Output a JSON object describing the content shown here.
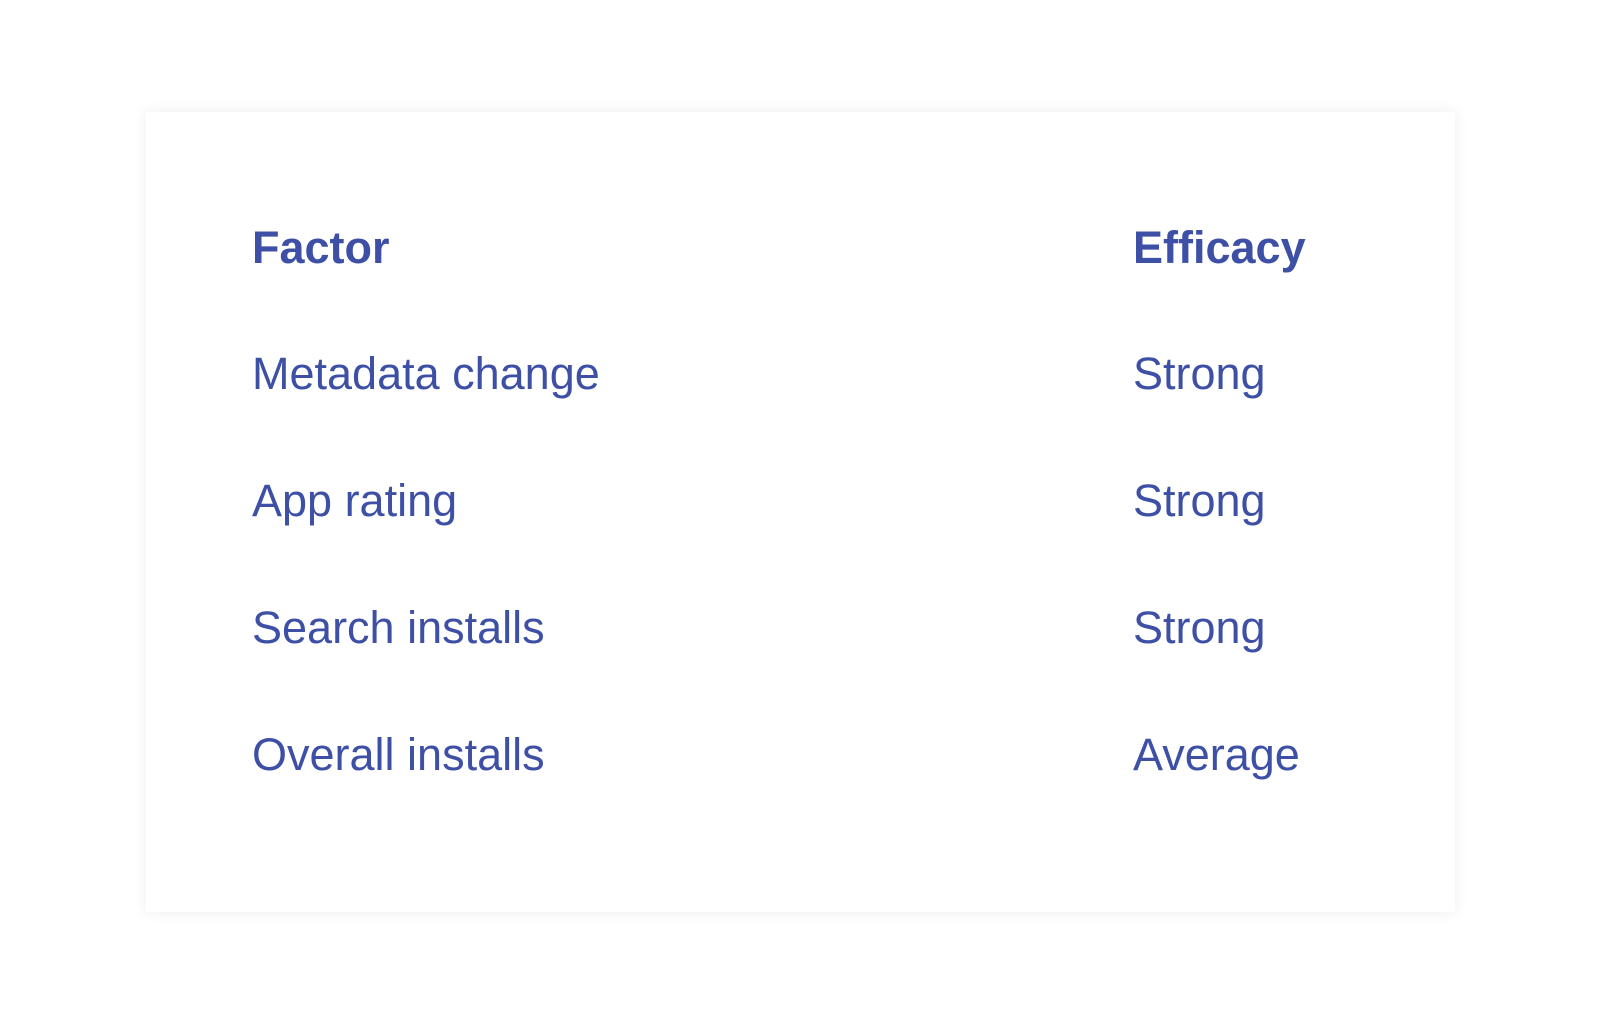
{
  "table": {
    "headers": [
      "Factor",
      "Efficacy"
    ],
    "rows": [
      [
        "Metadata change",
        "Strong"
      ],
      [
        "App rating",
        "Strong"
      ],
      [
        "Search installs",
        "Strong"
      ],
      [
        "Overall installs",
        "Average"
      ]
    ]
  },
  "colors": {
    "text": "#3e50a6",
    "background": "#ffffff"
  }
}
